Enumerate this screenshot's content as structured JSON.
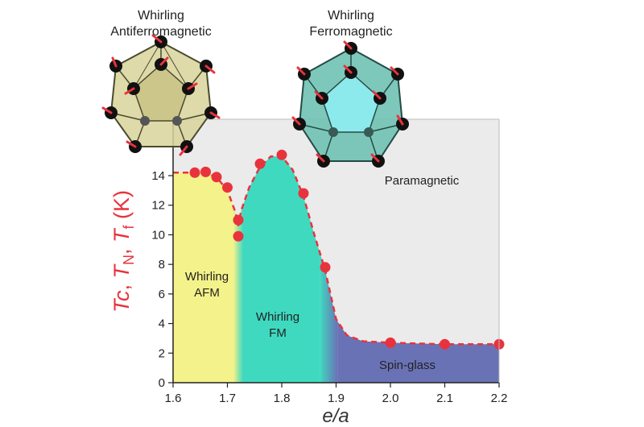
{
  "chart_data": {
    "type": "scatter",
    "xlabel": "e/a",
    "ylabel_parts": [
      "Tc",
      ", ",
      "T",
      "N",
      ", ",
      "T",
      "f",
      " (K)"
    ],
    "xlim": [
      1.6,
      2.2
    ],
    "ylim": [
      0,
      15.5
    ],
    "x_ticks": [
      1.6,
      1.7,
      1.8,
      1.9,
      2.0,
      2.1,
      2.2
    ],
    "x_tick_labels": [
      "1.6",
      "1.7",
      "1.8",
      "1.9",
      "2.0",
      "2.1",
      "2.2"
    ],
    "y_ticks": [
      0,
      2,
      4,
      6,
      8,
      10,
      12,
      14
    ],
    "y_tick_labels": [
      "0",
      "2",
      "4",
      "6",
      "8",
      "10",
      "12",
      "14"
    ],
    "points": [
      {
        "x": 1.64,
        "y": 14.2
      },
      {
        "x": 1.66,
        "y": 14.25
      },
      {
        "x": 1.68,
        "y": 13.9
      },
      {
        "x": 1.7,
        "y": 13.2
      },
      {
        "x": 1.72,
        "y": 11.0
      },
      {
        "x": 1.72,
        "y": 9.9
      },
      {
        "x": 1.76,
        "y": 14.8
      },
      {
        "x": 1.8,
        "y": 15.4
      },
      {
        "x": 1.84,
        "y": 12.8
      },
      {
        "x": 1.88,
        "y": 7.8
      },
      {
        "x": 2.0,
        "y": 2.7
      },
      {
        "x": 2.1,
        "y": 2.6
      },
      {
        "x": 2.2,
        "y": 2.6
      }
    ],
    "boundary_line": [
      [
        1.6,
        14.2
      ],
      [
        1.62,
        14.2
      ],
      [
        1.64,
        14.2
      ],
      [
        1.66,
        14.2
      ],
      [
        1.68,
        13.9
      ],
      [
        1.7,
        13.0
      ],
      [
        1.715,
        11.5
      ],
      [
        1.72,
        10.6
      ],
      [
        1.725,
        11.6
      ],
      [
        1.74,
        13.2
      ],
      [
        1.76,
        14.6
      ],
      [
        1.78,
        15.3
      ],
      [
        1.8,
        15.3
      ],
      [
        1.82,
        14.4
      ],
      [
        1.84,
        12.6
      ],
      [
        1.86,
        10.0
      ],
      [
        1.88,
        7.6
      ],
      [
        1.9,
        4.3
      ],
      [
        1.92,
        3.2
      ],
      [
        1.95,
        2.8
      ],
      [
        2.0,
        2.7
      ],
      [
        2.1,
        2.6
      ],
      [
        2.2,
        2.6
      ]
    ],
    "regions": [
      {
        "label_lines": [
          "Whirling",
          "AFM"
        ],
        "x_range": [
          1.6,
          1.72
        ],
        "color": "#f4f28a"
      },
      {
        "label_lines": [
          "Whirling",
          "FM"
        ],
        "x_range": [
          1.72,
          1.885
        ],
        "color": "#3fd9c0"
      },
      {
        "label_lines": [
          "Spin-glass"
        ],
        "x_range": [
          1.885,
          2.2
        ],
        "color": "#6a72b6"
      },
      {
        "label_lines": [
          "Paramagnetic"
        ],
        "color": "#ebebeb"
      }
    ],
    "line_color": "#e8333d",
    "marker_color": "#e8333d"
  },
  "insets": [
    {
      "title_lines": [
        "Whirling",
        "Antiferromagnetic"
      ],
      "fill": "#d8d39a"
    },
    {
      "title_lines": [
        "Whirling",
        "Ferromagnetic"
      ],
      "fill": "#6fc2b4"
    }
  ]
}
